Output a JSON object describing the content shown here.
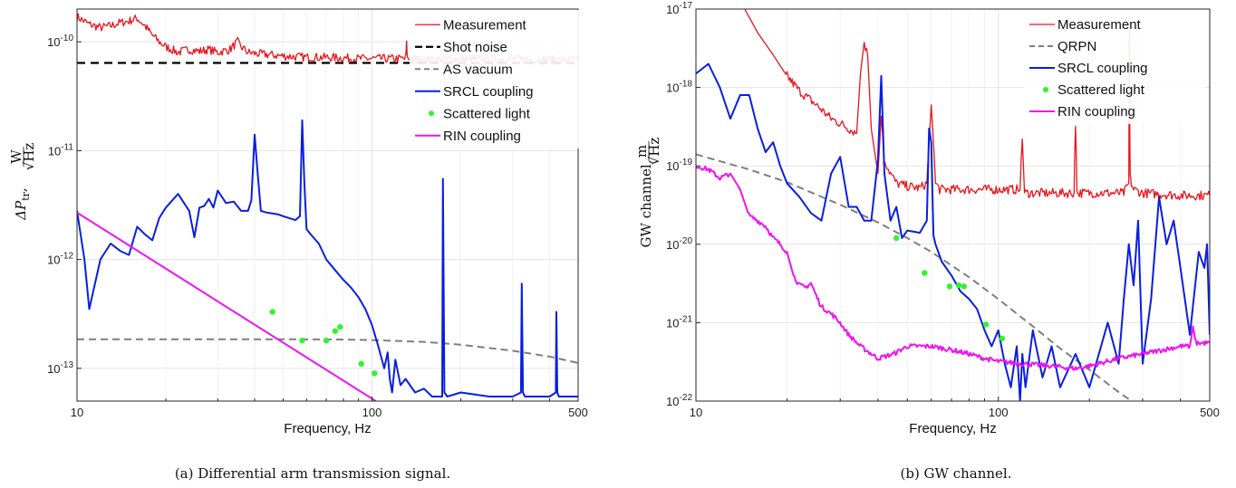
{
  "chart_data": [
    {
      "id": "a",
      "type": "line",
      "caption": "(a) Differential arm transmission signal.",
      "xlabel": "Frequency, Hz",
      "ylabel_main": "ΔP",
      "ylabel_sub": "tr",
      "ylabel_unit_num": "W",
      "ylabel_unit_den": "√Hz",
      "xscale": "log",
      "yscale": "log",
      "xlim": [
        10,
        500
      ],
      "ylim": [
        5e-14,
        2e-10
      ],
      "xticks": [
        10,
        100,
        500
      ],
      "xtick_labels": [
        "10",
        "100",
        "500"
      ],
      "yticks": [
        1e-13,
        1e-12,
        1e-11,
        1e-10
      ],
      "ytick_labels": [
        {
          "base": "10",
          "exp": "-13"
        },
        {
          "base": "10",
          "exp": "-12"
        },
        {
          "base": "10",
          "exp": "-11"
        },
        {
          "base": "10",
          "exp": "-10"
        }
      ],
      "grid": true,
      "legend_position": "top-right",
      "series": [
        {
          "name": "Measurement",
          "color": "#e8141c",
          "style": "solid",
          "width": 1.3,
          "x": [
            10,
            11,
            12,
            13,
            14,
            15,
            16,
            17,
            18,
            19,
            20,
            22,
            24,
            26,
            28,
            30,
            33,
            35,
            36,
            38,
            40,
            45,
            50,
            60,
            70,
            80,
            90,
            100,
            120,
            130,
            131,
            132,
            150,
            200,
            300,
            400,
            500
          ],
          "y": [
            1.7e-10,
            1.45e-10,
            1.35e-10,
            1.4e-10,
            1.5e-10,
            1.55e-10,
            1.65e-10,
            1.4e-10,
            1.15e-10,
            1e-10,
            9e-11,
            8e-11,
            8.5e-11,
            8.2e-11,
            8.5e-11,
            8e-11,
            8.5e-11,
            1e-10,
            9e-11,
            8e-11,
            7.8e-11,
            7.6e-11,
            7.4e-11,
            7.2e-11,
            7.2e-11,
            7.1e-11,
            7e-11,
            7e-11,
            7e-11,
            7e-11,
            9.5e-11,
            7e-11,
            6.9e-11,
            6.9e-11,
            6.9e-11,
            6.8e-11,
            6.8e-11
          ],
          "noise": 0.08
        },
        {
          "name": "Shot noise",
          "color": "#000000",
          "style": "dashed",
          "width": 2.2,
          "x": [
            10,
            500
          ],
          "y": [
            6.4e-11,
            6.4e-11
          ]
        },
        {
          "name": "AS vacuum",
          "color": "#7f7f7f",
          "style": "dashed",
          "width": 2,
          "x": [
            10,
            50,
            80,
            100,
            150,
            200,
            300,
            400,
            500
          ],
          "y": [
            1.85e-13,
            1.85e-13,
            1.84e-13,
            1.82e-13,
            1.75e-13,
            1.65e-13,
            1.45e-13,
            1.28e-13,
            1.12e-13
          ]
        },
        {
          "name": "SRCL coupling",
          "color": "#0a1ee0",
          "style": "solid",
          "width": 2,
          "x": [
            10,
            10.6,
            11,
            12,
            13,
            14,
            15,
            16,
            17,
            18,
            19,
            20,
            22,
            24,
            25,
            26,
            27,
            28,
            29,
            30,
            32,
            34,
            36,
            38,
            39,
            40,
            41,
            42,
            44,
            48,
            50,
            55,
            57,
            58,
            59,
            60,
            62,
            66,
            70,
            75,
            80,
            85,
            90,
            95,
            100,
            105,
            110,
            113,
            115,
            117,
            120,
            125,
            130,
            140,
            150,
            160,
            170,
            173,
            174,
            176,
            180,
            200,
            250,
            300,
            320,
            322,
            325,
            330,
            400,
            420,
            422,
            425,
            430,
            500
          ],
          "y": [
            2.8e-12,
            1e-12,
            3.5e-13,
            1e-12,
            1.4e-12,
            1.2e-12,
            1.1e-12,
            2e-12,
            1.7e-12,
            1.5e-12,
            2.4e-12,
            3e-12,
            4e-12,
            2.8e-12,
            1.6e-12,
            3e-12,
            3.1e-12,
            3.6e-12,
            3e-12,
            4.3e-12,
            3.3e-12,
            3.4e-12,
            2.8e-12,
            2.8e-12,
            3.5e-12,
            1.4e-11,
            6e-12,
            2.8e-12,
            2.7e-12,
            2.6e-12,
            2.5e-12,
            2.3e-12,
            2.5e-12,
            1.9e-11,
            5e-12,
            1.9e-12,
            1.7e-12,
            1.4e-12,
            1e-12,
            8e-13,
            6.5e-13,
            5.5e-13,
            4.5e-13,
            3.5e-13,
            2.5e-13,
            1.6e-13,
            1e-13,
            1.4e-13,
            8e-14,
            6e-14,
            1.2e-13,
            7e-14,
            8e-14,
            6e-14,
            6.5e-14,
            5.5e-14,
            5.5e-14,
            5.5e-14,
            5.5e-12,
            6e-14,
            5.5e-14,
            6e-14,
            5.5e-14,
            5.5e-14,
            6e-14,
            6e-13,
            6e-14,
            5.5e-14,
            5.5e-14,
            6e-14,
            3.3e-13,
            6e-14,
            5.5e-14,
            5.5e-14
          ],
          "floor": 5e-14
        },
        {
          "name": "Scattered light",
          "color": "#2ff52f",
          "style": "points",
          "width": 0,
          "x": [
            46,
            58,
            70,
            75,
            78,
            92,
            102
          ],
          "y": [
            3.3e-13,
            1.8e-13,
            1.8e-13,
            2.2e-13,
            2.4e-13,
            1.1e-13,
            9e-14
          ]
        },
        {
          "name": "RIN coupling",
          "color": "#ee14ee",
          "style": "solid",
          "width": 2,
          "x": [
            10,
            103
          ],
          "y": [
            2.7e-12,
            5e-14
          ]
        }
      ]
    },
    {
      "id": "b",
      "type": "line",
      "caption": "(b) GW channel.",
      "xlabel": "Frequency, Hz",
      "ylabel_main": "GW channel,",
      "ylabel_unit_num": "m",
      "ylabel_unit_den": "√Hz",
      "xscale": "log",
      "yscale": "log",
      "xlim": [
        10,
        500
      ],
      "ylim": [
        1e-22,
        1e-17
      ],
      "xticks": [
        10,
        100,
        500
      ],
      "xtick_labels": [
        "10",
        "100",
        "500"
      ],
      "yticks": [
        1e-22,
        1e-21,
        1e-20,
        1e-19,
        1e-18,
        1e-17
      ],
      "ytick_labels": [
        {
          "base": "10",
          "exp": "-22"
        },
        {
          "base": "10",
          "exp": "-21"
        },
        {
          "base": "10",
          "exp": "-20"
        },
        {
          "base": "10",
          "exp": "-19"
        },
        {
          "base": "10",
          "exp": "-18"
        },
        {
          "base": "10",
          "exp": "-17"
        }
      ],
      "grid": true,
      "legend_position": "top-right",
      "series": [
        {
          "name": "Measurement",
          "color": "#e8141c",
          "style": "solid",
          "width": 1.3,
          "x": [
            14.5,
            16,
            18,
            20,
            22,
            25,
            28,
            30,
            32,
            34,
            35,
            36,
            37,
            38,
            39,
            40,
            41,
            42,
            44,
            46,
            50,
            55,
            58,
            59,
            60,
            61,
            62,
            64,
            70,
            80,
            100,
            118,
            119,
            120,
            121,
            122,
            150,
            178,
            179,
            180,
            181,
            182,
            200,
            260,
            270,
            271,
            272,
            273,
            275,
            280,
            300,
            400,
            500
          ],
          "y": [
            1e-17,
            5e-18,
            2.6e-18,
            1.4e-18,
            9e-19,
            6e-19,
            4e-19,
            3.5e-19,
            3e-19,
            2.6e-19,
            1.5e-18,
            3.8e-18,
            2.5e-18,
            3e-19,
            1.5e-19,
            8e-20,
            4.3e-19,
            1.2e-19,
            8e-20,
            6e-20,
            5.5e-20,
            5.2e-20,
            6e-20,
            2e-19,
            6e-19,
            2e-19,
            6e-20,
            5e-20,
            5e-20,
            5e-20,
            5e-20,
            5e-20,
            1.2e-19,
            2.2e-19,
            1e-19,
            4.5e-20,
            4.5e-20,
            4.5e-20,
            1.6e-19,
            3.2e-19,
            1.5e-19,
            4.5e-20,
            4.5e-20,
            4.5e-20,
            6e-20,
            8e-18,
            3e-19,
            7e-20,
            6e-20,
            5e-20,
            4.5e-20,
            4.2e-20,
            4.2e-20
          ],
          "noise": 0.12
        },
        {
          "name": "QRPN",
          "color": "#7f7f7f",
          "style": "dashed",
          "width": 2,
          "x": [
            10,
            15,
            20,
            30,
            40,
            50,
            60,
            80,
            100,
            130,
            160,
            200,
            250,
            300
          ],
          "y": [
            1.4e-19,
            9e-20,
            6.2e-20,
            3.2e-20,
            1.9e-20,
            1.2e-20,
            8e-21,
            3.8e-21,
            2e-21,
            9e-22,
            4.7e-22,
            2.5e-22,
            1.3e-22,
            8e-23
          ]
        },
        {
          "name": "SRCL coupling",
          "color": "#0a1ee0",
          "style": "solid",
          "width": 2,
          "x": [
            10,
            11,
            12,
            13,
            14,
            15,
            16,
            17,
            18,
            19,
            20,
            22,
            24,
            26,
            28,
            30,
            32,
            34,
            36,
            38,
            40,
            41,
            42,
            44,
            46,
            48,
            50,
            55,
            58,
            59,
            60,
            61,
            62,
            65,
            70,
            75,
            80,
            85,
            90,
            95,
            100,
            105,
            110,
            115,
            118,
            120,
            123,
            130,
            140,
            150,
            160,
            180,
            200,
            230,
            250,
            260,
            270,
            280,
            290,
            300,
            320,
            340,
            360,
            380,
            400,
            430,
            460,
            480,
            490,
            500
          ],
          "y": [
            1.5e-18,
            2e-18,
            1e-18,
            4e-19,
            8e-19,
            8e-19,
            3e-19,
            1.5e-19,
            2e-19,
            1e-19,
            6e-20,
            4e-20,
            2.5e-20,
            2e-20,
            8e-20,
            1.3e-19,
            3e-20,
            3e-20,
            2e-20,
            2e-20,
            1.2e-19,
            1.4e-18,
            8e-20,
            2e-20,
            3e-20,
            1.2e-20,
            1.5e-20,
            1.4e-20,
            2e-20,
            3e-19,
            2e-19,
            1.3e-20,
            1e-20,
            6e-21,
            4e-21,
            2.5e-21,
            2e-21,
            1.5e-21,
            8e-22,
            5e-22,
            8e-22,
            3e-22,
            1.5e-22,
            5e-22,
            1e-22,
            4e-22,
            1.5e-22,
            8e-22,
            2e-22,
            5e-22,
            1.5e-22,
            4e-22,
            1.5e-22,
            1e-21,
            3e-22,
            2e-21,
            1e-20,
            3e-21,
            2e-20,
            3e-22,
            2e-21,
            4e-20,
            1e-20,
            2e-20,
            5e-21,
            7e-22,
            8e-21,
            5e-21,
            1e-20,
            7e-22
          ],
          "floor": 1e-22
        },
        {
          "name": "Scattered light",
          "color": "#2ff52f",
          "style": "points",
          "width": 0,
          "x": [
            46,
            57,
            69,
            74,
            77,
            91,
            103
          ],
          "y": [
            1.2e-20,
            4.3e-21,
            2.9e-21,
            3e-21,
            2.9e-21,
            9.5e-22,
            6.3e-22
          ]
        },
        {
          "name": "RIN coupling",
          "color": "#ee14ee",
          "style": "solid",
          "width": 2,
          "x": [
            10,
            11,
            12,
            13,
            14,
            15,
            16,
            17,
            18,
            19,
            20,
            21,
            22,
            23,
            24,
            25,
            26,
            28,
            30,
            32,
            35,
            40,
            45,
            50,
            60,
            70,
            80,
            90,
            100,
            120,
            150,
            180,
            200,
            250,
            300,
            350,
            400,
            430,
            440,
            450,
            500
          ],
          "y": [
            1e-19,
            9e-20,
            7e-20,
            8e-20,
            5e-20,
            2.3e-20,
            2e-20,
            1.7e-20,
            1.2e-20,
            1e-20,
            8e-21,
            4e-21,
            3e-21,
            2.8e-21,
            3.2e-21,
            2.2e-21,
            1.6e-21,
            1.3e-21,
            1e-21,
            7e-22,
            5e-22,
            3.5e-22,
            4e-22,
            5e-22,
            5e-22,
            4.5e-22,
            4e-22,
            3.5e-22,
            3.2e-22,
            3e-22,
            2.8e-22,
            2.6e-22,
            2.8e-22,
            3.5e-22,
            4e-22,
            4.5e-22,
            5e-22,
            5e-22,
            9e-22,
            5.5e-22,
            5.5e-22
          ],
          "noise": 0.06
        }
      ]
    }
  ]
}
